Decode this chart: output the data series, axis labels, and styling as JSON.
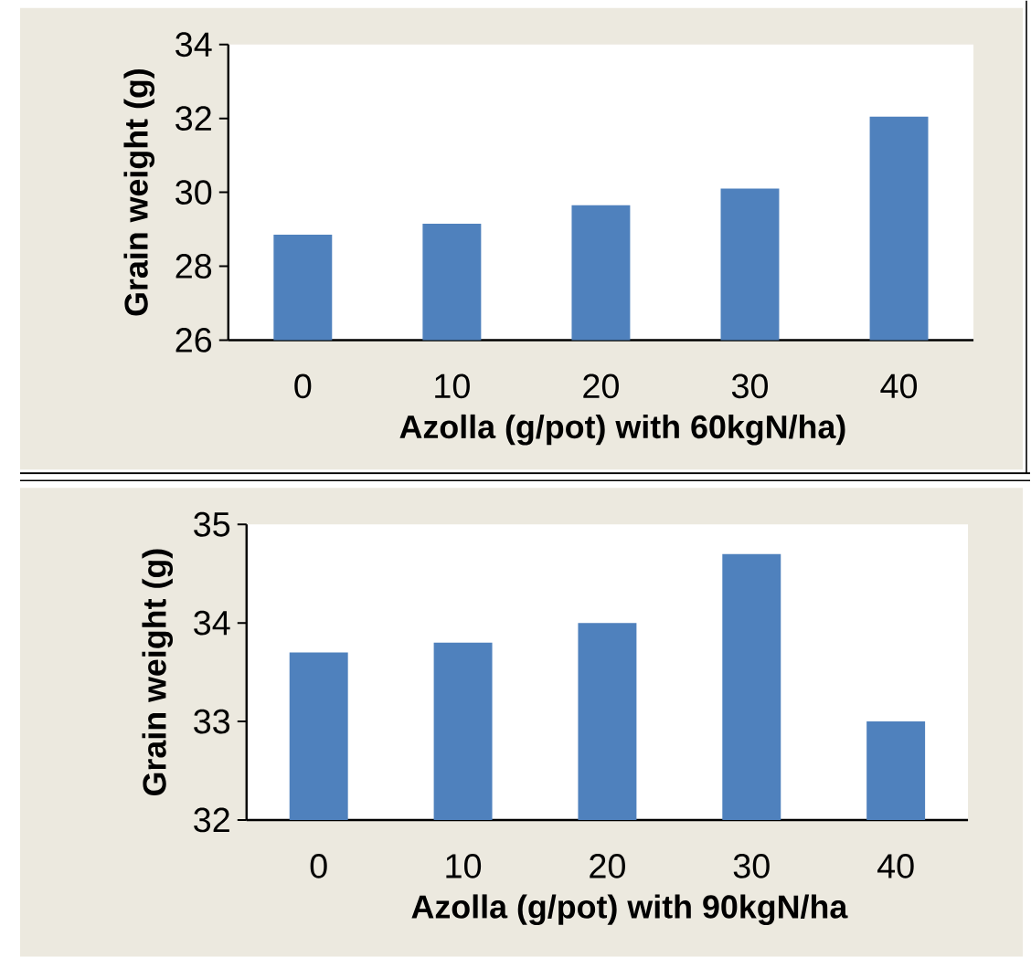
{
  "chart_data": [
    {
      "type": "bar",
      "categories": [
        "0",
        "10",
        "20",
        "30",
        "40"
      ],
      "values": [
        28.85,
        29.15,
        29.65,
        30.1,
        32.05
      ],
      "color": "#4f81bd",
      "ylim": [
        26,
        34
      ],
      "yticks": [
        26,
        28,
        30,
        32,
        34
      ],
      "xlabel": "Azolla (g/pot) with 60kgN/ha)",
      "ylabel": "Grain  weight (g)"
    },
    {
      "type": "bar",
      "categories": [
        "0",
        "10",
        "20",
        "30",
        "40"
      ],
      "values": [
        33.7,
        33.8,
        34.0,
        34.7,
        33.0
      ],
      "color": "#4f81bd",
      "ylim": [
        32,
        35
      ],
      "yticks": [
        32,
        33,
        34,
        35
      ],
      "xlabel": "Azolla (g/pot) with 90kgN/ha",
      "ylabel": "Grain  weight (g)"
    }
  ]
}
